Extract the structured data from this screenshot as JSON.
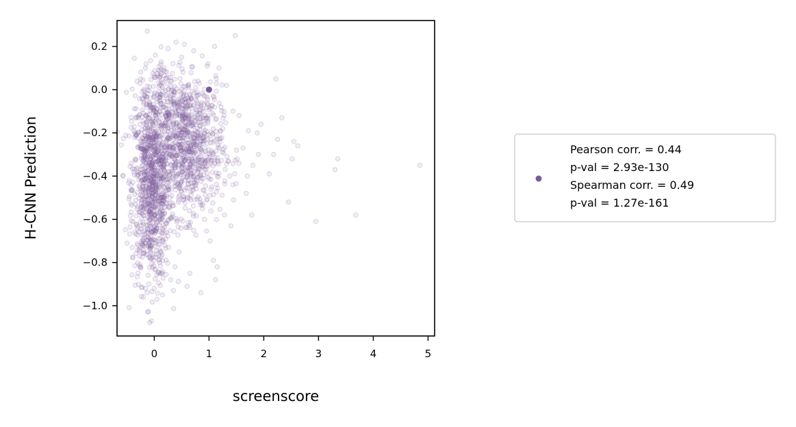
{
  "chart_data": {
    "type": "scatter",
    "title": "",
    "xlabel": "screenscore",
    "ylabel": "H-CNN Prediction",
    "xlim": [
      -0.68,
      5.12
    ],
    "ylim": [
      -1.14,
      0.32
    ],
    "xticks": [
      0,
      1,
      2,
      3,
      4,
      5
    ],
    "xtick_labels": [
      "0",
      "1",
      "2",
      "3",
      "4",
      "5"
    ],
    "yticks": [
      0.2,
      0.0,
      -0.2,
      -0.4,
      -0.6,
      -0.8,
      -1.0
    ],
    "ytick_labels": [
      "0.2",
      "0.0",
      "−0.2",
      "−0.4",
      "−0.6",
      "−0.8",
      "−1.0"
    ],
    "grid": false,
    "marker_color": "#7b5a9c",
    "highlight_point": {
      "x": 1.0,
      "y": 0.0
    },
    "legend": {
      "placement": "right",
      "lines": [
        "Pearson corr. = 0.44",
        "p-val = 2.93e-130",
        "Spearman corr. = 0.49",
        "p-val = 1.27e-161"
      ]
    },
    "points": [
      [
        4.85,
        -0.35
      ],
      [
        3.68,
        -0.58
      ],
      [
        3.35,
        -0.32
      ],
      [
        3.3,
        -0.37
      ],
      [
        2.95,
        -0.61
      ],
      [
        2.62,
        -0.26
      ],
      [
        2.55,
        -0.24
      ],
      [
        2.52,
        -0.32
      ],
      [
        2.45,
        -0.52
      ],
      [
        2.33,
        -0.13
      ],
      [
        2.25,
        -0.23
      ],
      [
        2.22,
        0.05
      ],
      [
        2.18,
        -0.3
      ],
      [
        2.1,
        -0.39
      ],
      [
        1.95,
        -0.16
      ],
      [
        1.9,
        -0.3
      ],
      [
        1.88,
        -0.2
      ],
      [
        1.8,
        -0.35
      ],
      [
        1.78,
        -0.58
      ],
      [
        1.72,
        -0.19
      ],
      [
        1.7,
        -0.4
      ],
      [
        1.68,
        -0.48
      ],
      [
        1.62,
        -0.27
      ],
      [
        1.55,
        -0.12
      ],
      [
        1.48,
        0.25
      ],
      [
        1.45,
        -0.51
      ],
      [
        1.4,
        -0.63
      ],
      [
        1.35,
        -0.33
      ],
      [
        1.28,
        -0.58
      ],
      [
        1.22,
        -0.08
      ],
      [
        1.15,
        -0.82
      ],
      [
        1.12,
        -0.88
      ],
      [
        1.1,
        0.2
      ],
      [
        1.08,
        -0.79
      ],
      [
        1.05,
        -0.45
      ],
      [
        1.02,
        -0.7
      ],
      [
        0.98,
        0.12
      ],
      [
        0.92,
        -0.6
      ],
      [
        0.88,
        -0.55
      ],
      [
        0.85,
        -0.94
      ],
      [
        0.8,
        0.04
      ],
      [
        0.78,
        -0.3
      ],
      [
        0.72,
        0.18
      ],
      [
        0.65,
        -0.85
      ],
      [
        0.6,
        -0.91
      ],
      [
        0.55,
        0.21
      ],
      [
        0.5,
        0.15
      ],
      [
        0.4,
        0.22
      ],
      [
        0.35,
        -0.93
      ],
      [
        0.3,
        -0.88
      ],
      [
        0.25,
        0.19
      ],
      [
        0.15,
        -0.95
      ],
      [
        0.05,
        -0.97
      ],
      [
        0.0,
        -0.92
      ],
      [
        -0.05,
        -1.07
      ],
      [
        -0.1,
        -0.9
      ],
      [
        -0.2,
        -0.96
      ],
      [
        -0.25,
        -0.82
      ],
      [
        -0.3,
        -0.72
      ],
      [
        -0.4,
        -0.73
      ],
      [
        -0.42,
        -0.34
      ],
      [
        -0.25,
        0.05
      ],
      [
        -0.15,
        0.12
      ],
      [
        0.02,
        0.16
      ],
      [
        0.08,
        0.09
      ],
      [
        1.32,
        0.02
      ],
      [
        1.18,
        0.1
      ],
      [
        1.25,
        -0.18
      ],
      [
        1.38,
        -0.4
      ],
      [
        1.5,
        -0.28
      ]
    ]
  }
}
